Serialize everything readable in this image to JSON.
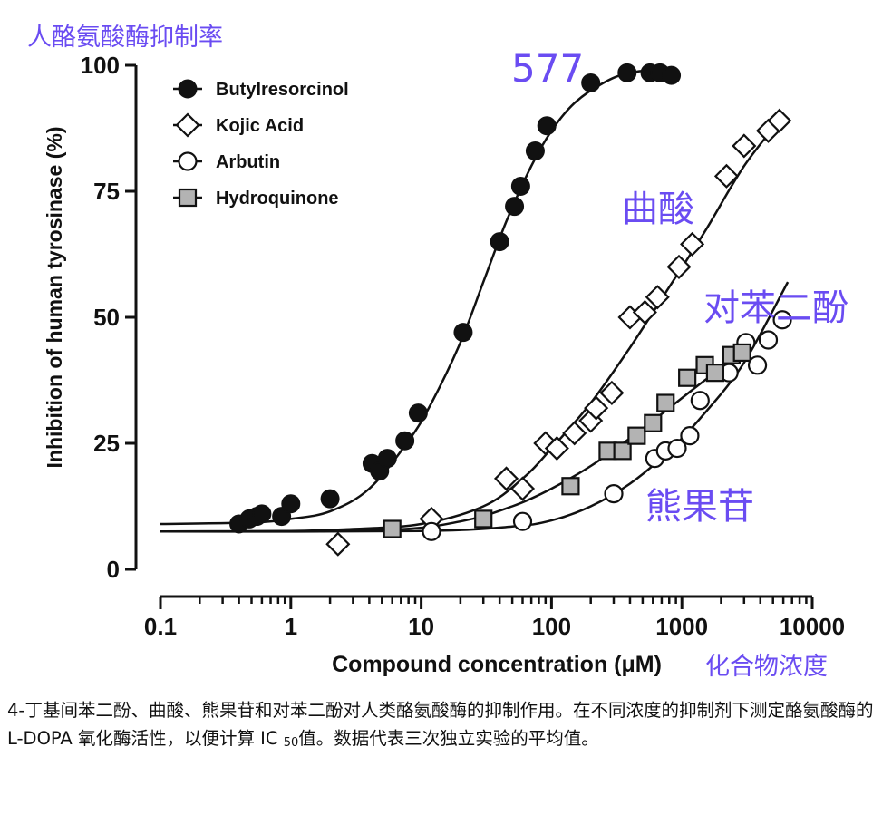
{
  "chart_data": {
    "type": "scatter",
    "x_scale": "log",
    "xlim": [
      0.1,
      10000
    ],
    "ylim": [
      0,
      100
    ],
    "xlabel": "Compound concentration (μM)",
    "ylabel": "Inhibition of human tyrosinase (%)",
    "x_ticks": [
      "0.1",
      "1",
      "10",
      "100",
      "1000",
      "10000"
    ],
    "y_ticks": [
      "0",
      "25",
      "50",
      "75",
      "100"
    ],
    "legend_position": "top-left",
    "series": [
      {
        "name": "Butylresorcinol",
        "marker": "filled-circle",
        "fill": "#111111",
        "points": [
          [
            0.4,
            9
          ],
          [
            0.48,
            10
          ],
          [
            0.55,
            10.5
          ],
          [
            0.6,
            11
          ],
          [
            0.85,
            10.5
          ],
          [
            1.0,
            13
          ],
          [
            2.0,
            14
          ],
          [
            4.2,
            21
          ],
          [
            4.8,
            19.5
          ],
          [
            5.5,
            22
          ],
          [
            7.5,
            25.5
          ],
          [
            9.5,
            31
          ],
          [
            21,
            47
          ],
          [
            40,
            65
          ],
          [
            52,
            72
          ],
          [
            58,
            76
          ],
          [
            75,
            83
          ],
          [
            92,
            88
          ],
          [
            200,
            96.5
          ],
          [
            380,
            98.5
          ],
          [
            570,
            98.5
          ],
          [
            680,
            98.5
          ],
          [
            830,
            98
          ]
        ],
        "fit": [
          [
            0.1,
            9
          ],
          [
            0.5,
            9.3
          ],
          [
            1,
            10
          ],
          [
            2,
            11.5
          ],
          [
            4,
            16
          ],
          [
            8,
            25.5
          ],
          [
            12,
            33
          ],
          [
            20,
            45
          ],
          [
            30,
            57
          ],
          [
            45,
            69
          ],
          [
            70,
            80
          ],
          [
            100,
            87
          ],
          [
            150,
            92.5
          ],
          [
            250,
            96.5
          ],
          [
            400,
            98.5
          ],
          [
            850,
            99.5
          ]
        ]
      },
      {
        "name": "Kojic Acid",
        "marker": "open-diamond",
        "fill": "#ffffff",
        "points": [
          [
            2.3,
            5
          ],
          [
            12,
            10
          ],
          [
            45,
            18
          ],
          [
            60,
            16
          ],
          [
            90,
            25
          ],
          [
            110,
            24
          ],
          [
            150,
            27
          ],
          [
            200,
            29.5
          ],
          [
            220,
            32
          ],
          [
            290,
            35
          ],
          [
            400,
            50
          ],
          [
            520,
            51
          ],
          [
            650,
            54
          ],
          [
            950,
            60
          ],
          [
            1200,
            64.5
          ],
          [
            2200,
            78
          ],
          [
            3000,
            84
          ],
          [
            4600,
            87
          ],
          [
            5600,
            89
          ]
        ],
        "fit": [
          [
            0.1,
            7.5
          ],
          [
            1,
            7.6
          ],
          [
            3,
            8
          ],
          [
            10,
            9
          ],
          [
            30,
            12.5
          ],
          [
            60,
            18
          ],
          [
            100,
            24
          ],
          [
            200,
            33
          ],
          [
            400,
            44
          ],
          [
            800,
            56
          ],
          [
            1500,
            67
          ],
          [
            3000,
            80
          ],
          [
            6000,
            90
          ]
        ]
      },
      {
        "name": "Arbutin",
        "marker": "open-circle",
        "fill": "#ffffff",
        "points": [
          [
            12,
            7.5
          ],
          [
            60,
            9.5
          ],
          [
            300,
            15
          ],
          [
            620,
            22
          ],
          [
            750,
            23.5
          ],
          [
            920,
            24
          ],
          [
            1150,
            26.5
          ],
          [
            1380,
            33.5
          ],
          [
            2300,
            39
          ],
          [
            3100,
            45
          ],
          [
            3800,
            40.5
          ],
          [
            4600,
            45.5
          ],
          [
            5900,
            49.5
          ]
        ],
        "fit": [
          [
            0.1,
            7.5
          ],
          [
            10,
            7.6
          ],
          [
            50,
            8.5
          ],
          [
            100,
            9.7
          ],
          [
            200,
            12.5
          ],
          [
            400,
            17
          ],
          [
            800,
            23.5
          ],
          [
            1500,
            31
          ],
          [
            3000,
            41
          ],
          [
            6500,
            57
          ]
        ]
      },
      {
        "name": "Hydroquinone",
        "marker": "grey-square",
        "fill": "#b3b3b3",
        "points": [
          [
            6,
            8
          ],
          [
            30,
            10
          ],
          [
            140,
            16.5
          ],
          [
            270,
            23.5
          ],
          [
            350,
            23.5
          ],
          [
            450,
            26.5
          ],
          [
            600,
            29
          ],
          [
            750,
            33
          ],
          [
            1100,
            38
          ],
          [
            1500,
            40.5
          ],
          [
            1800,
            39
          ],
          [
            2400,
            42.5
          ],
          [
            2900,
            43
          ]
        ],
        "fit": [
          [
            0.1,
            7.5
          ],
          [
            5,
            7.8
          ],
          [
            20,
            9.5
          ],
          [
            50,
            12.5
          ],
          [
            100,
            16
          ],
          [
            200,
            20.5
          ],
          [
            400,
            26
          ],
          [
            800,
            32
          ],
          [
            1500,
            37.5
          ],
          [
            3000,
            43
          ]
        ]
      }
    ]
  },
  "annotations": {
    "yaxis_cn": "人酪氨酸酶抑制率",
    "butylresorcinol_cn": "577",
    "kojic_cn": "曲酸",
    "hydroquinone_cn": "对苯二酚",
    "arbutin_cn": "熊果苷",
    "xaxis_cn": "化合物浓度",
    "color": "#6a4cf2"
  },
  "caption": {
    "text_before_sub": "4-丁基间苯二酚、曲酸、熊果苷和对苯二酚对人类酪氨酸酶的抑制作用。在不同浓度的抑制剂下测定酪氨酸酶的 L-DOPA 氧化酶活性，以便计算 IC ",
    "subscript": "50",
    "text_after_sub": "值。数据代表三次独立实验的平均值。"
  }
}
